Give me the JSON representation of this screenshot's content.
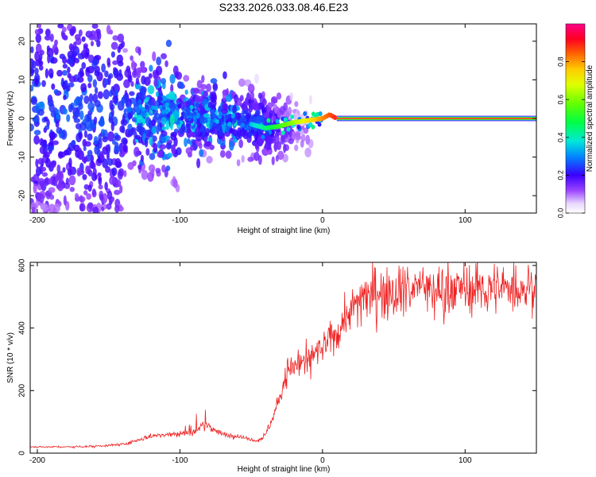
{
  "title": "S233.2026.033.08.46.E23",
  "chart_data": [
    {
      "type": "heatmap",
      "title": "S233.2026.033.08.46.E23",
      "xlabel": "Height of straight line (km)",
      "ylabel": "Frequency (Hz)",
      "xlim": [
        -205,
        150
      ],
      "ylim": [
        -24.5,
        24.5
      ],
      "x_ticks": [
        -200,
        -100,
        0,
        100
      ],
      "y_ticks": [
        -20,
        -10,
        0,
        10,
        20
      ],
      "colorbar": {
        "label": "Normalized spectral amplitude",
        "range": [
          0.0,
          1.0
        ],
        "ticks": [
          0.0,
          0.2,
          0.4,
          0.6,
          0.8
        ]
      },
      "features": {
        "tone_frequency_hz": 0,
        "tone_visible_from_km": 10,
        "tone_center_km": [
          -50,
          -40,
          -30,
          -20,
          -10,
          0,
          5,
          10,
          20,
          150
        ],
        "tone_center_hz": [
          -1.5,
          -2.5,
          -2,
          -1,
          -0.5,
          0,
          1,
          0,
          0,
          0
        ],
        "spread_region_km": [
          -205,
          -45
        ],
        "spread_region_hz": [
          -24,
          24
        ]
      }
    },
    {
      "type": "line",
      "title": "",
      "xlabel": "Height of straight line (km)",
      "ylabel": "SNR (10 * v/v)",
      "xlim": [
        -205,
        150
      ],
      "ylim": [
        0,
        610
      ],
      "x_ticks": [
        -200,
        -100,
        0,
        100
      ],
      "y_ticks": [
        0,
        200,
        400,
        600
      ],
      "series": [
        {
          "name": "SNR",
          "color": "#ee2222",
          "x": [
            -205,
            -180,
            -160,
            -140,
            -130,
            -120,
            -110,
            -100,
            -90,
            -85,
            -80,
            -75,
            -70,
            -60,
            -50,
            -45,
            -40,
            -35,
            -30,
            -25,
            -20,
            -15,
            -10,
            -5,
            0,
            5,
            10,
            15,
            20,
            25,
            30,
            40,
            50,
            60,
            80,
            100,
            120,
            150
          ],
          "values": [
            20,
            20,
            22,
            28,
            40,
            55,
            60,
            62,
            68,
            85,
            90,
            70,
            60,
            55,
            45,
            40,
            60,
            110,
            180,
            260,
            280,
            300,
            290,
            320,
            330,
            360,
            390,
            420,
            460,
            490,
            510,
            520,
            525,
            530,
            530,
            530,
            525,
            530
          ]
        }
      ]
    }
  ]
}
